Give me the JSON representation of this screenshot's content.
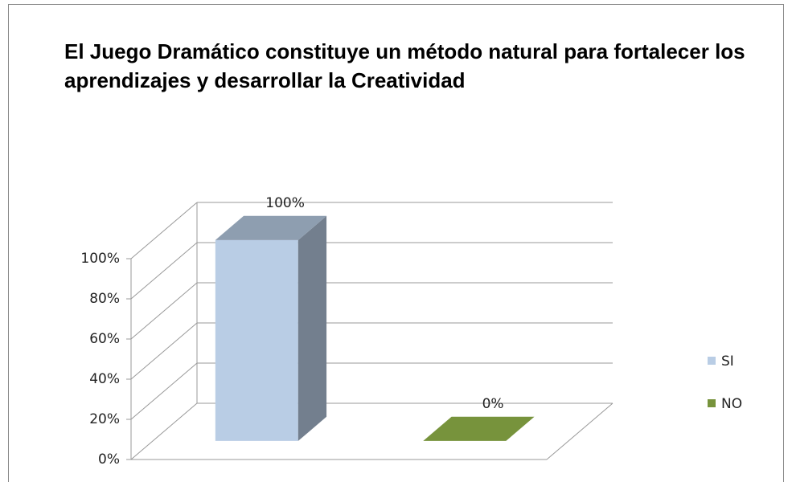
{
  "chart_data": {
    "type": "bar3d",
    "title": "El Juego Dramático constituye un método natural para fortalecer los aprendizajes y  desarrollar la Creatividad",
    "categories": [
      null
    ],
    "series": [
      {
        "name": "SI",
        "color": "#b9cde5",
        "values": [
          100
        ],
        "value_labels": [
          "100%"
        ]
      },
      {
        "name": "NO",
        "color": "#77933c",
        "values": [
          0
        ],
        "value_labels": [
          "0%"
        ]
      }
    ],
    "ylim": [
      0,
      100
    ],
    "yticks": [
      {
        "value": 0,
        "label": "0%"
      },
      {
        "value": 20,
        "label": "20%"
      },
      {
        "value": 40,
        "label": "40%"
      },
      {
        "value": 60,
        "label": "60%"
      },
      {
        "value": 80,
        "label": "80%"
      },
      {
        "value": 100,
        "label": "100%"
      }
    ],
    "grid": true,
    "legend": "right"
  }
}
